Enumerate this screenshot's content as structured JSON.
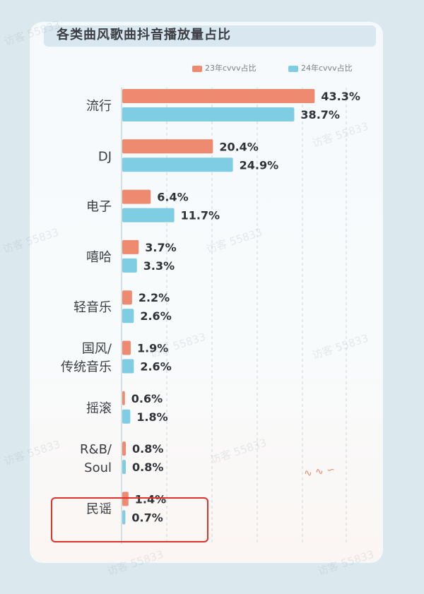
{
  "chart_data": {
    "type": "bar",
    "orientation": "horizontal",
    "title": "各类曲风歌曲抖音播放量占比",
    "categories": [
      "流行",
      "DJ",
      "电子",
      "嘻哈",
      "轻音乐",
      "国风/\n传统音乐",
      "摇滚",
      "R&B/\nSoul",
      "民谣"
    ],
    "series": [
      {
        "name": "23年cvvv占比",
        "values": [
          43.3,
          20.4,
          6.4,
          3.7,
          2.2,
          1.9,
          0.6,
          0.8,
          1.4
        ],
        "labels": [
          "43.3%",
          "20.4%",
          "6.4%",
          "3.7%",
          "2.2%",
          "1.9%",
          "0.6%",
          "0.8%",
          "1.4%"
        ]
      },
      {
        "name": "24年cvvv占比",
        "values": [
          38.7,
          24.9,
          11.7,
          3.3,
          2.6,
          2.6,
          1.8,
          0.8,
          0.7
        ],
        "labels": [
          "38.7%",
          "24.9%",
          "11.7%",
          "3.3%",
          "2.6%",
          "2.6%",
          "1.8%",
          "0.8%",
          "0.7%"
        ]
      }
    ],
    "colors": {
      "series_23": "#ee8a70",
      "series_24": "#7fcde3",
      "grid": "#c9d7df",
      "highlight": "#e0332b"
    },
    "legend_position": "top-right",
    "grid": true,
    "highlighted_category": "民谣",
    "xlim": [
      0,
      50
    ]
  },
  "watermark": "访客 55833",
  "decoration": "∿ ∿ ∽"
}
